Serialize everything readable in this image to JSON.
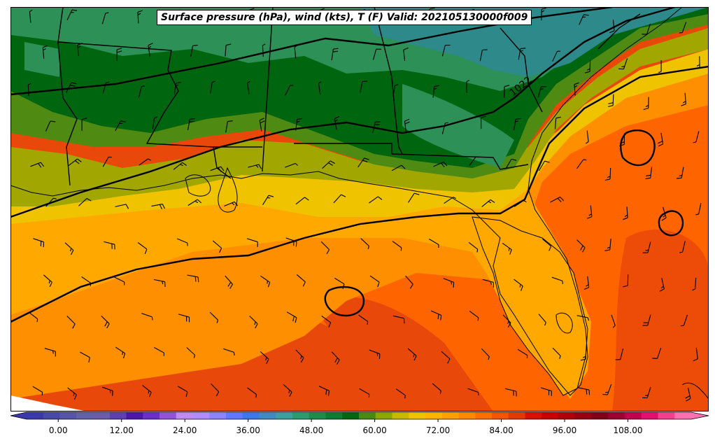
{
  "title": "Surface pressure (hPa), wind (kts), T (F) Valid: 202105130000f009",
  "colors": {
    "temp_100_plus": "#e8480a",
    "temp_92": "#fe6500",
    "temp_85": "#fd8f00",
    "temp_80": "#ffa800",
    "temp_76": "#f0c300",
    "temp_72": "#a2a600",
    "temp_68": "#4f8a12",
    "temp_63": "#00650f",
    "temp_58": "#2c9057",
    "temp_52": "#2e8a8a",
    "coast": "#000000",
    "contour": "#000000"
  },
  "contour_labels": [
    {
      "text": "1022"
    }
  ],
  "colorbar": {
    "unit_hint": "",
    "ticks": [
      "0.00",
      "12.00",
      "24.00",
      "36.00",
      "48.00",
      "60.00",
      "72.00",
      "84.00",
      "96.00",
      "108.00"
    ],
    "min": -6,
    "max": 120,
    "bins": [
      "#3b3aa8",
      "#4848a6",
      "#5656a8",
      "#6361a8",
      "#6d5caa",
      "#5f3fb0",
      "#4a17a8",
      "#6a2fc8",
      "#9452d8",
      "#c08af0",
      "#b28cff",
      "#8c84ff",
      "#5f78ff",
      "#3c78e8",
      "#3f8ac0",
      "#3f9e9e",
      "#2d9a70",
      "#1f8a4a",
      "#0e7a34",
      "#006612",
      "#4b8a12",
      "#8ea600",
      "#c8b800",
      "#f0c300",
      "#ffb400",
      "#ffa000",
      "#ff8a00",
      "#ff6f00",
      "#f25400",
      "#e23a00",
      "#d81000",
      "#c80000",
      "#b00008",
      "#960010",
      "#80001a",
      "#9c0030",
      "#c20050",
      "#e0106c",
      "#f2408c",
      "#ff70b0"
    ]
  }
}
